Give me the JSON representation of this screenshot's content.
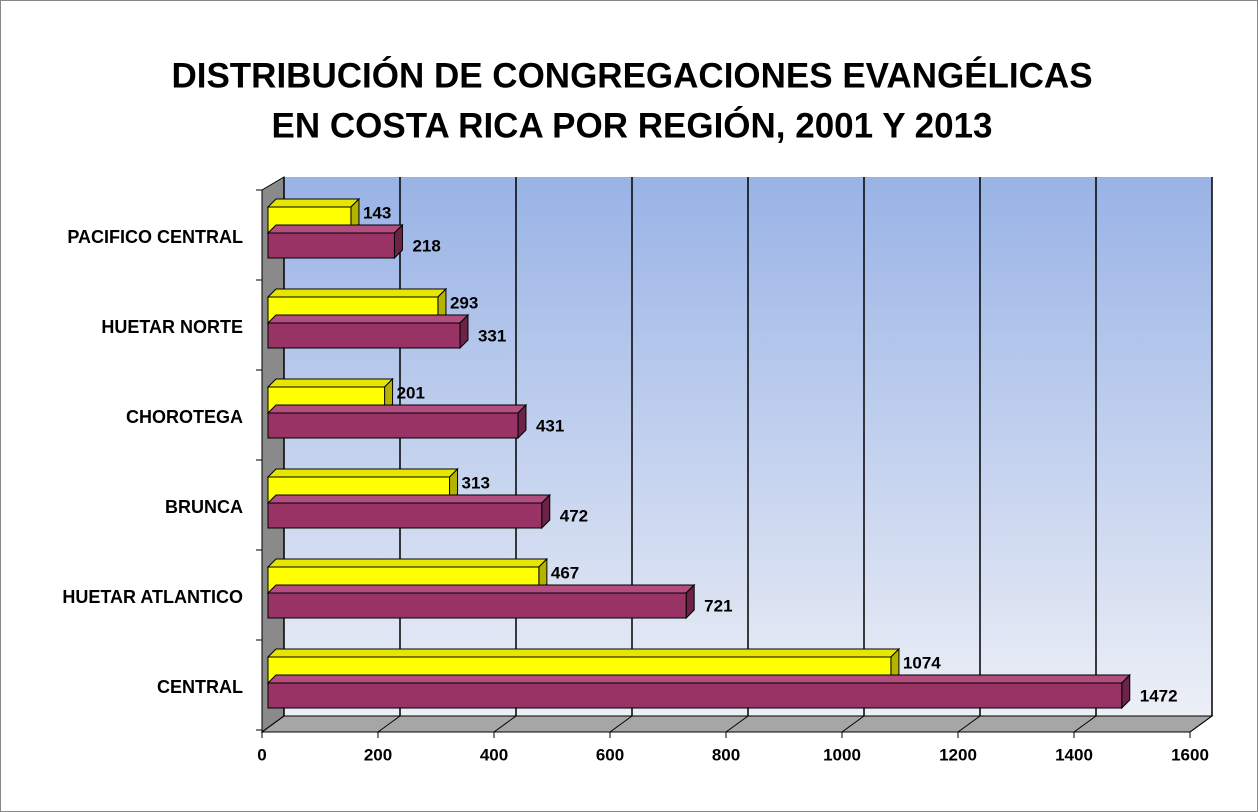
{
  "chart_data": {
    "type": "bar3d_horizontal",
    "title": [
      "DISTRIBUCIÓN DE CONGREGACIONES EVANGÉLICAS",
      "EN COSTA RICA POR REGIÓN, 2001 Y 2013"
    ],
    "categories": [
      "PACIFICO CENTRAL",
      "HUETAR NORTE",
      "CHOROTEGA",
      "BRUNCA",
      "HUETAR ATLANTICO",
      "CENTRAL"
    ],
    "series": [
      {
        "color": "#ffff00",
        "values": [
          143,
          293,
          201,
          313,
          467,
          1074
        ]
      },
      {
        "color": "#993366",
        "values": [
          218,
          331,
          431,
          472,
          721,
          1472
        ]
      }
    ],
    "xlim": [
      0,
      1600
    ],
    "xticks": [
      0,
      200,
      400,
      600,
      800,
      1000,
      1200,
      1400,
      1600
    ],
    "grid": true
  }
}
